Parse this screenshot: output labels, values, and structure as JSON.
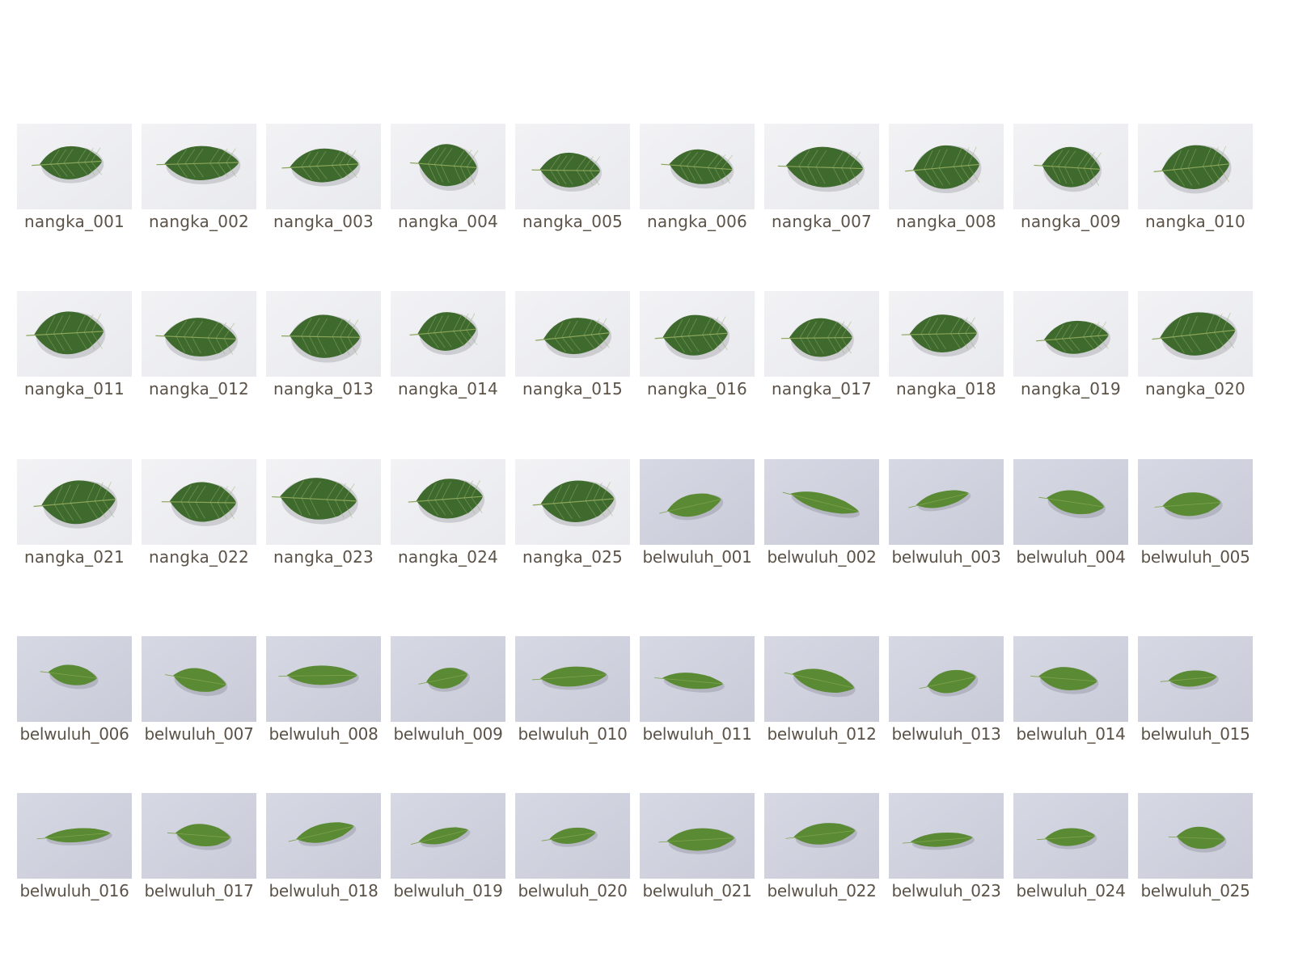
{
  "gallery": {
    "items": [
      {
        "label": "nangka_001",
        "kind": "nangka"
      },
      {
        "label": "nangka_002",
        "kind": "nangka"
      },
      {
        "label": "nangka_003",
        "kind": "nangka"
      },
      {
        "label": "nangka_004",
        "kind": "nangka"
      },
      {
        "label": "nangka_005",
        "kind": "nangka"
      },
      {
        "label": "nangka_006",
        "kind": "nangka"
      },
      {
        "label": "nangka_007",
        "kind": "nangka"
      },
      {
        "label": "nangka_008",
        "kind": "nangka"
      },
      {
        "label": "nangka_009",
        "kind": "nangka"
      },
      {
        "label": "nangka_010",
        "kind": "nangka"
      },
      {
        "label": "nangka_011",
        "kind": "nangka"
      },
      {
        "label": "nangka_012",
        "kind": "nangka"
      },
      {
        "label": "nangka_013",
        "kind": "nangka"
      },
      {
        "label": "nangka_014",
        "kind": "nangka"
      },
      {
        "label": "nangka_015",
        "kind": "nangka"
      },
      {
        "label": "nangka_016",
        "kind": "nangka"
      },
      {
        "label": "nangka_017",
        "kind": "nangka"
      },
      {
        "label": "nangka_018",
        "kind": "nangka"
      },
      {
        "label": "nangka_019",
        "kind": "nangka"
      },
      {
        "label": "nangka_020",
        "kind": "nangka"
      },
      {
        "label": "nangka_021",
        "kind": "nangka"
      },
      {
        "label": "nangka_022",
        "kind": "nangka"
      },
      {
        "label": "nangka_023",
        "kind": "nangka"
      },
      {
        "label": "nangka_024",
        "kind": "nangka"
      },
      {
        "label": "nangka_025",
        "kind": "nangka"
      },
      {
        "label": "belwuluh_001",
        "kind": "belwuluh"
      },
      {
        "label": "belwuluh_002",
        "kind": "belwuluh"
      },
      {
        "label": "belwuluh_003",
        "kind": "belwuluh"
      },
      {
        "label": "belwuluh_004",
        "kind": "belwuluh"
      },
      {
        "label": "belwuluh_005",
        "kind": "belwuluh"
      },
      {
        "label": "belwuluh_006",
        "kind": "belwuluh"
      },
      {
        "label": "belwuluh_007",
        "kind": "belwuluh"
      },
      {
        "label": "belwuluh_008",
        "kind": "belwuluh"
      },
      {
        "label": "belwuluh_009",
        "kind": "belwuluh"
      },
      {
        "label": "belwuluh_010",
        "kind": "belwuluh"
      },
      {
        "label": "belwuluh_011",
        "kind": "belwuluh"
      },
      {
        "label": "belwuluh_012",
        "kind": "belwuluh"
      },
      {
        "label": "belwuluh_013",
        "kind": "belwuluh"
      },
      {
        "label": "belwuluh_014",
        "kind": "belwuluh"
      },
      {
        "label": "belwuluh_015",
        "kind": "belwuluh"
      },
      {
        "label": "belwuluh_016",
        "kind": "belwuluh"
      },
      {
        "label": "belwuluh_017",
        "kind": "belwuluh"
      },
      {
        "label": "belwuluh_018",
        "kind": "belwuluh"
      },
      {
        "label": "belwuluh_019",
        "kind": "belwuluh"
      },
      {
        "label": "belwuluh_020",
        "kind": "belwuluh"
      },
      {
        "label": "belwuluh_021",
        "kind": "belwuluh"
      },
      {
        "label": "belwuluh_022",
        "kind": "belwuluh"
      },
      {
        "label": "belwuluh_023",
        "kind": "belwuluh"
      },
      {
        "label": "belwuluh_024",
        "kind": "belwuluh"
      },
      {
        "label": "belwuluh_025",
        "kind": "belwuluh"
      }
    ]
  },
  "colors": {
    "caption": "#5b5248",
    "nangka_bg": "#e9eaee",
    "belwuluh_bg": "#c9cbd8",
    "nangka_leaf": "#3f6a2e",
    "nangka_vein": "#8aa55a",
    "belwuluh_leaf": "#5b8a34"
  }
}
